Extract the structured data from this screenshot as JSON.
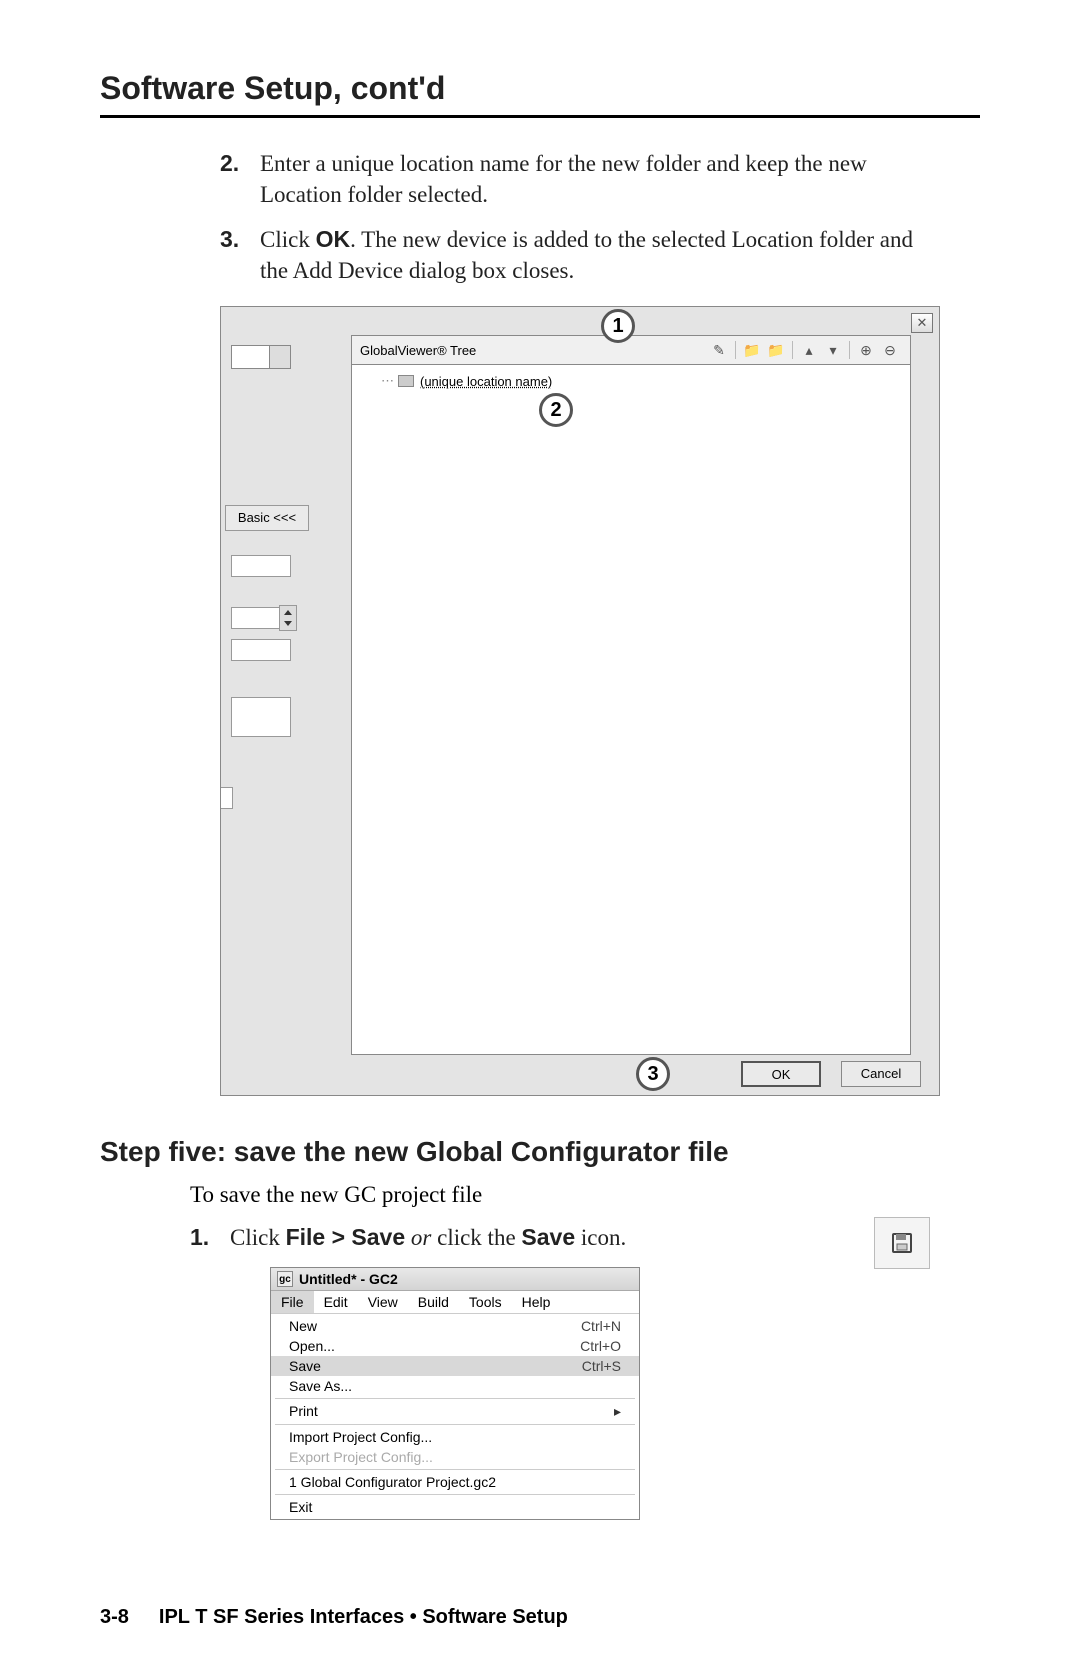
{
  "header": {
    "title": "Software Setup, cont'd"
  },
  "steps_a": [
    {
      "num": "2.",
      "html": "Enter a unique location name for the new folder and keep the new Location folder selected."
    },
    {
      "num": "3.",
      "html": "Click <b>OK</b>.  The new device is added to the selected Location folder and the Add Device dialog box closes."
    }
  ],
  "shot1": {
    "tree_label": "GlobalViewer® Tree",
    "tree_item": "(unique location name)",
    "basic_btn": "Basic <<<",
    "ok": "OK",
    "cancel": "Cancel",
    "callouts": {
      "c1": "1",
      "c2": "2",
      "c3": "3"
    },
    "toolbar_icons": [
      "pencil",
      "sep",
      "folder",
      "folder",
      "sep",
      "up",
      "down",
      "sep",
      "plus",
      "minus"
    ]
  },
  "step_title": "Step five: save the new Global Configurator file",
  "body1": "To save the new GC project file",
  "steps_b": [
    {
      "num": "1.",
      "html": "Click <b>File > Save</b> <i>or</i> click the <b>Save</b> icon."
    }
  ],
  "shot2": {
    "title": "Untitled* - GC2",
    "menubar": [
      "File",
      "Edit",
      "View",
      "Build",
      "Tools",
      "Help"
    ],
    "menu": [
      {
        "label": "New",
        "shortcut": "Ctrl+N"
      },
      {
        "label": "Open...",
        "shortcut": "Ctrl+O"
      },
      {
        "label": "Save",
        "shortcut": "Ctrl+S",
        "selected": true
      },
      {
        "label": "Save As..."
      },
      {
        "sep": true
      },
      {
        "label": "Print",
        "submenu": true
      },
      {
        "sep": true
      },
      {
        "label": "Import Project Config..."
      },
      {
        "label": "Export Project Config...",
        "disabled": true
      },
      {
        "sep": true
      },
      {
        "label": "1 Global Configurator Project.gc2"
      },
      {
        "sep": true
      },
      {
        "label": "Exit"
      }
    ]
  },
  "footer": {
    "page": "3-8",
    "text": "IPL T SF Series Interfaces • Software Setup"
  }
}
